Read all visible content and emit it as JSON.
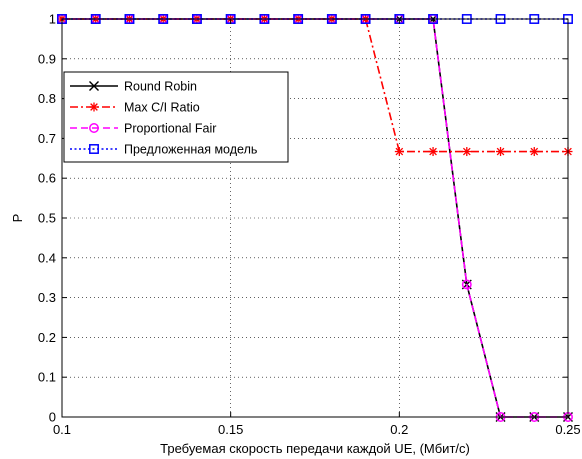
{
  "chart_data": {
    "type": "line",
    "title": "",
    "xlabel": "Требуемая скорость передачи каждой UE, (Мбит/с)",
    "ylabel": "P",
    "xlim": [
      0.1,
      0.25
    ],
    "ylim": [
      0,
      1
    ],
    "x_ticks": [
      "0.1",
      "0.15",
      "0.2",
      "0.25"
    ],
    "y_ticks": [
      "0",
      "0.1",
      "0.2",
      "0.3",
      "0.4",
      "0.5",
      "0.6",
      "0.7",
      "0.8",
      "0.9",
      "1"
    ],
    "grid": true,
    "legend_position": "top-left",
    "series": [
      {
        "name": "Round Robin",
        "color": "#000000",
        "line_style": "solid",
        "marker": "x",
        "x": [
          0.1,
          0.11,
          0.12,
          0.13,
          0.14,
          0.15,
          0.16,
          0.17,
          0.18,
          0.19,
          0.2,
          0.21,
          0.22,
          0.23,
          0.24,
          0.25
        ],
        "values": [
          1,
          1,
          1,
          1,
          1,
          1,
          1,
          1,
          1,
          1,
          1,
          1,
          0.333,
          0,
          0,
          0
        ]
      },
      {
        "name": "Max C/I Ratio",
        "color": "#ff0000",
        "line_style": "dash-dot",
        "marker": "asterisk",
        "x": [
          0.1,
          0.11,
          0.12,
          0.13,
          0.14,
          0.15,
          0.16,
          0.17,
          0.18,
          0.19,
          0.2,
          0.21,
          0.22,
          0.23,
          0.24,
          0.25
        ],
        "values": [
          1,
          1,
          1,
          1,
          1,
          1,
          1,
          1,
          1,
          1,
          0.667,
          0.667,
          0.667,
          0.667,
          0.667,
          0.667
        ]
      },
      {
        "name": "Proportional Fair",
        "color": "#ff00ff",
        "line_style": "dashed",
        "marker": "circle",
        "x": [
          0.1,
          0.11,
          0.12,
          0.13,
          0.14,
          0.15,
          0.16,
          0.17,
          0.18,
          0.19,
          0.2,
          0.21,
          0.22,
          0.23,
          0.24,
          0.25
        ],
        "values": [
          1,
          1,
          1,
          1,
          1,
          1,
          1,
          1,
          1,
          1,
          1,
          1,
          0.333,
          0,
          0,
          0
        ]
      },
      {
        "name": "Предложенная модель",
        "color": "#0000ff",
        "line_style": "dotted",
        "marker": "square",
        "x": [
          0.1,
          0.11,
          0.12,
          0.13,
          0.14,
          0.15,
          0.16,
          0.17,
          0.18,
          0.19,
          0.2,
          0.21,
          0.22,
          0.23,
          0.24,
          0.25
        ],
        "values": [
          1,
          1,
          1,
          1,
          1,
          1,
          1,
          1,
          1,
          1,
          1,
          1,
          1,
          1,
          1,
          1
        ]
      }
    ]
  }
}
